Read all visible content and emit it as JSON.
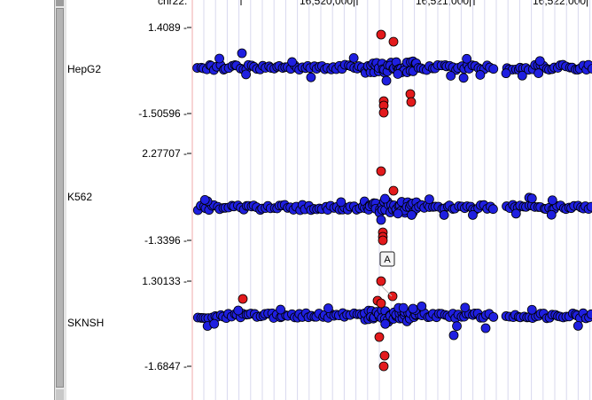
{
  "ruler": {
    "chrom_label": "chr22:",
    "positions": [
      "16,520,000|",
      "16,521,000|",
      "16,522,000|"
    ]
  },
  "tracks": [
    {
      "label": "HepG2",
      "max": "1.4089 -",
      "min": "-1.50596 -"
    },
    {
      "label": "K562",
      "max": "2.27707 -",
      "min": "-1.3396 -"
    },
    {
      "label": "SKNSH",
      "max": "1.30133 -",
      "min": "-1.6847 -"
    }
  ],
  "annotation": {
    "label": "A"
  },
  "colors": {
    "background_points": "#1f1fe0",
    "highlight_points": "#e31a1c",
    "point_outline": "#000000",
    "grid_line": "#d8d8ee",
    "left_axis": "#f0a8a8"
  }
}
